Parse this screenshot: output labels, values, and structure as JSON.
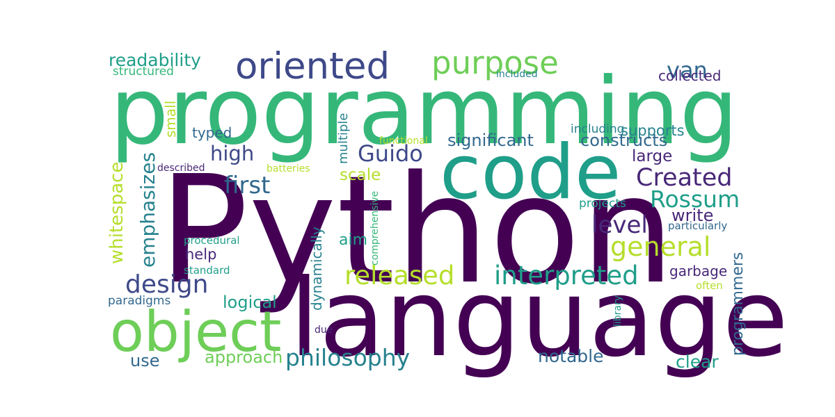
{
  "colors": {
    "deep_purple": "#440154",
    "purple": "#482878",
    "indigo": "#3e4989",
    "slate_blue": "#31688e",
    "teal_blue": "#26828e",
    "teal": "#1f9e89",
    "green_teal": "#35b779",
    "green": "#6ece58",
    "lime": "#b5de2b"
  },
  "words": [
    {
      "text": "Python",
      "color": "deep_purple"
    },
    {
      "text": "programming",
      "color": "green_teal"
    },
    {
      "text": "language",
      "color": "deep_purple"
    },
    {
      "text": "code",
      "color": "teal"
    },
    {
      "text": "object",
      "color": "green"
    },
    {
      "text": "oriented",
      "color": "indigo"
    },
    {
      "text": "purpose",
      "color": "green"
    },
    {
      "text": "readability",
      "color": "teal"
    },
    {
      "text": "structured",
      "color": "green_teal"
    },
    {
      "text": "van",
      "color": "slate_blue"
    },
    {
      "text": "collected",
      "color": "purple"
    },
    {
      "text": "included",
      "color": "teal_blue"
    },
    {
      "text": "including",
      "color": "teal_blue"
    },
    {
      "text": "supports",
      "color": "teal_blue"
    },
    {
      "text": "high",
      "color": "indigo"
    },
    {
      "text": "Guido",
      "color": "indigo"
    },
    {
      "text": "first",
      "color": "slate_blue"
    },
    {
      "text": "significant",
      "color": "slate_blue"
    },
    {
      "text": "constructs",
      "color": "slate_blue"
    },
    {
      "text": "large",
      "color": "purple"
    },
    {
      "text": "Created",
      "color": "purple"
    },
    {
      "text": "Rossum",
      "color": "teal"
    },
    {
      "text": "typed",
      "color": "slate_blue"
    },
    {
      "text": "functional",
      "color": "lime"
    },
    {
      "text": "small",
      "color": "lime"
    },
    {
      "text": "multiple",
      "color": "teal_blue"
    },
    {
      "text": "described",
      "color": "purple"
    },
    {
      "text": "batteries",
      "color": "lime"
    },
    {
      "text": "scale",
      "color": "lime"
    },
    {
      "text": "emphasizes",
      "color": "teal_blue"
    },
    {
      "text": "whitespace",
      "color": "lime"
    },
    {
      "text": "projects",
      "color": "teal"
    },
    {
      "text": "particularly",
      "color": "slate_blue"
    },
    {
      "text": "write",
      "color": "purple"
    },
    {
      "text": "level",
      "color": "purple"
    },
    {
      "text": "general",
      "color": "lime"
    },
    {
      "text": "procedural",
      "color": "teal"
    },
    {
      "text": "help",
      "color": "purple"
    },
    {
      "text": "aim",
      "color": "teal"
    },
    {
      "text": "comprehensive",
      "color": "green_teal"
    },
    {
      "text": "programmers",
      "color": "slate_blue"
    },
    {
      "text": "standard",
      "color": "teal"
    },
    {
      "text": "released",
      "color": "lime"
    },
    {
      "text": "interpreted",
      "color": "teal"
    },
    {
      "text": "design",
      "color": "indigo"
    },
    {
      "text": "dynamically",
      "color": "teal_blue"
    },
    {
      "text": "garbage",
      "color": "purple"
    },
    {
      "text": "paradigms",
      "color": "slate_blue"
    },
    {
      "text": "logical",
      "color": "teal"
    },
    {
      "text": "library",
      "color": "teal"
    },
    {
      "text": "often",
      "color": "lime"
    },
    {
      "text": "due",
      "color": "purple"
    },
    {
      "text": "use",
      "color": "slate_blue"
    },
    {
      "text": "approach",
      "color": "green"
    },
    {
      "text": "philosophy",
      "color": "teal_blue"
    },
    {
      "text": "notable",
      "color": "slate_blue"
    },
    {
      "text": "clear",
      "color": "teal"
    }
  ]
}
